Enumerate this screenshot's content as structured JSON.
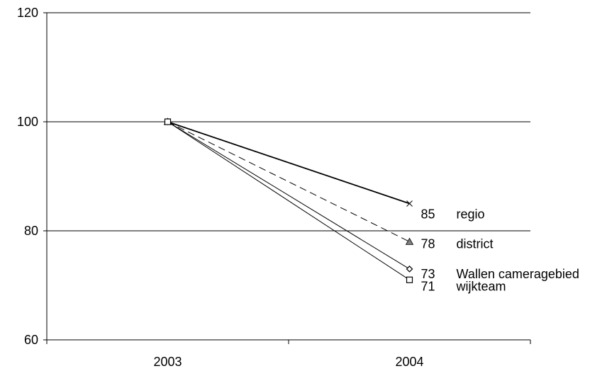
{
  "chart_data": {
    "type": "line",
    "x": [
      "2003",
      "2004"
    ],
    "ylim": [
      60,
      120
    ],
    "yticks": [
      60,
      80,
      100,
      120
    ],
    "grid": true,
    "series": [
      {
        "name": "regio",
        "values": [
          100,
          85
        ],
        "value_label": "85",
        "marker": "x-mark",
        "style": "solid",
        "color": "#000000"
      },
      {
        "name": "district",
        "values": [
          100,
          78
        ],
        "value_label": "78",
        "marker": "triangle",
        "style": "dashed",
        "color": "#000000"
      },
      {
        "name": "Wallen cameragebied",
        "values": [
          100,
          73
        ],
        "value_label": "73",
        "marker": "diamond",
        "style": "solid",
        "color": "#000000"
      },
      {
        "name": "wijkteam",
        "values": [
          100,
          71
        ],
        "value_label": "71",
        "marker": "square",
        "style": "solid",
        "color": "#000000"
      }
    ]
  }
}
